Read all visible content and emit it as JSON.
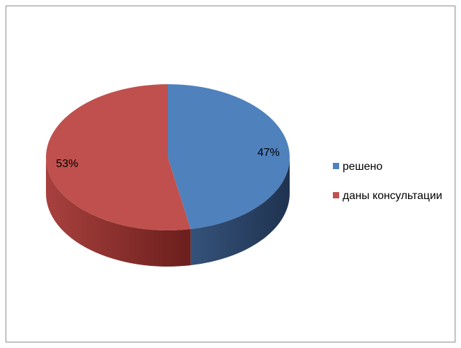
{
  "chart_data": {
    "type": "pie",
    "style": "3d",
    "categories": [
      "решено",
      "даны консультации"
    ],
    "values": [
      47,
      53
    ],
    "data_labels": [
      "47%",
      "53%"
    ],
    "colors": [
      "#4f81bd",
      "#c0504d"
    ],
    "side_colors_dark": [
      "#1f3350",
      "#6b1e1c"
    ],
    "side_colors_light": [
      "#35527a",
      "#a8413e"
    ],
    "legend_position": "right"
  }
}
